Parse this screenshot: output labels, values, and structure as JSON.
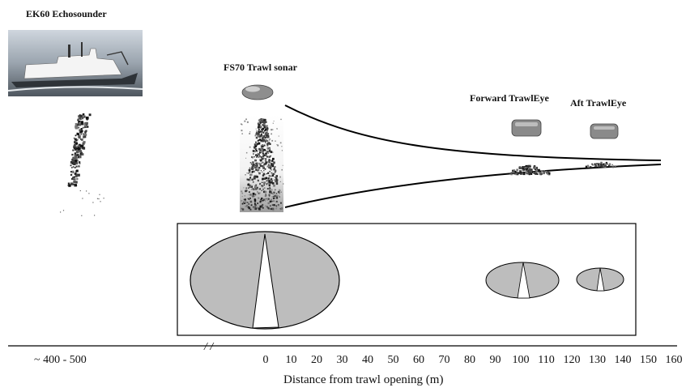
{
  "labels": {
    "ek60": "EK60 Echosounder",
    "fs70": "FS70 Trawl sonar",
    "forward_trawleye": "Forward TrawlEye",
    "aft_trawleye": "Aft TrawlEye"
  },
  "axis": {
    "far_range_label": "~ 400 - 500",
    "break_mark": "/ /",
    "ticks": [
      "0",
      "10",
      "20",
      "30",
      "40",
      "50",
      "60",
      "70",
      "80",
      "90",
      "100",
      "110",
      "120",
      "130",
      "140",
      "150",
      "160"
    ],
    "title": "Distance from trawl opening (m)"
  },
  "colors": {
    "ellipse_fill": "#bdbdbd",
    "line": "#000000",
    "gear_fill": "#8a8a8a"
  }
}
